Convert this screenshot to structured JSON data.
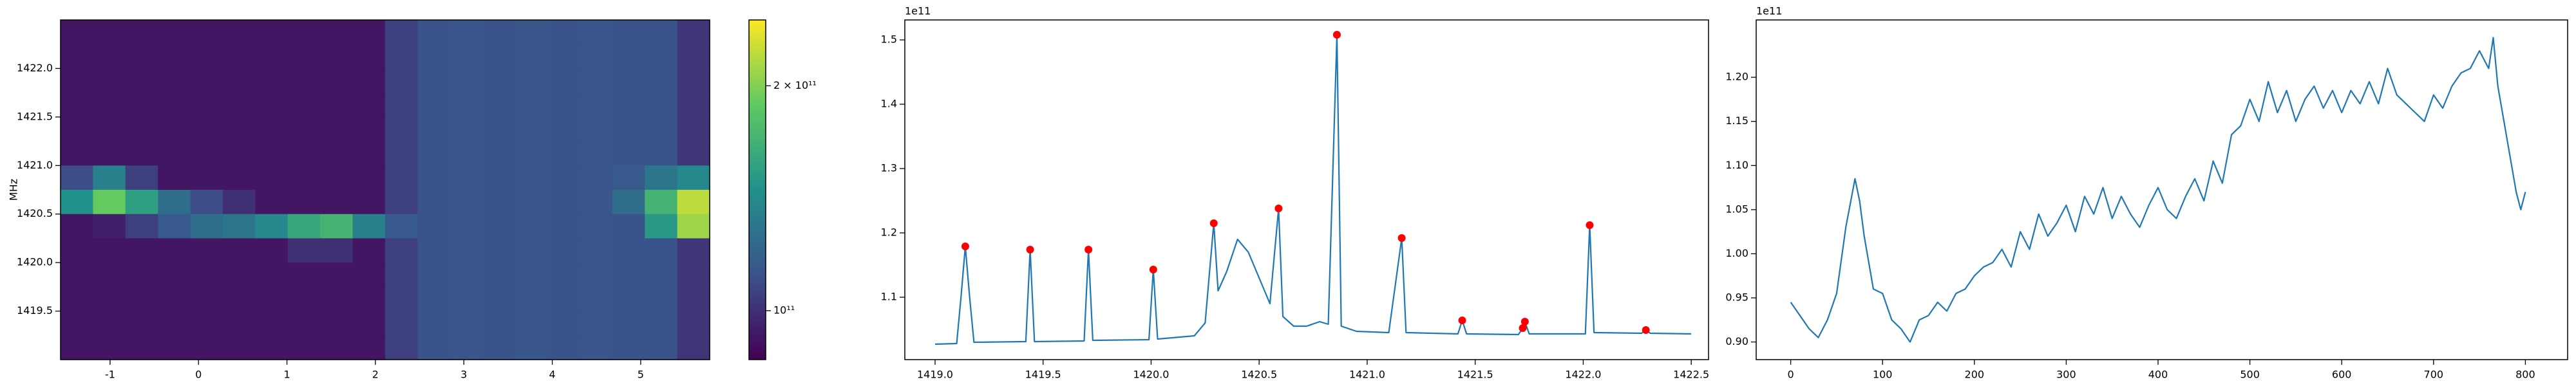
{
  "chart_data": [
    {
      "type": "heatmap",
      "ylabel": "MHz",
      "xlim": [
        -1.56,
        5.78
      ],
      "ylim": [
        1419.0,
        1422.5
      ],
      "xticks": [
        -1,
        0,
        1,
        2,
        3,
        4,
        5
      ],
      "yticks": [
        1419.5,
        {
          "value": 1420,
          "label": "1420.0"
        },
        1420.5,
        {
          "value": 1421,
          "label": "1421.0"
        },
        1421.5,
        {
          "value": 1422,
          "label": "1422.0"
        }
      ],
      "colormap": "viridis",
      "cscale": "log",
      "clim": [
        86000000000.0,
        245000000000.0
      ],
      "cticks": [
        {
          "value": 100000000000.0,
          "label": "10¹¹"
        },
        {
          "value": 200000000000.0,
          "label": "2 × 10¹¹"
        }
      ],
      "z": [
        [
          92000000000.0,
          92000000000.0,
          92000000000.0,
          92000000000.0,
          92000000000.0,
          92000000000.0,
          92000000000.0,
          92000000000.0,
          92000000000.0,
          92000000000.0,
          105000000000.0,
          112000000000.0,
          113000000000.0,
          112000000000.0,
          114000000000.0,
          112000000000.0,
          113000000000.0,
          112000000000.0,
          112000000000.0,
          102000000000.0
        ],
        [
          92000000000.0,
          92000000000.0,
          92000000000.0,
          92000000000.0,
          92000000000.0,
          92000000000.0,
          92000000000.0,
          92000000000.0,
          92000000000.0,
          92000000000.0,
          105000000000.0,
          112000000000.0,
          113000000000.0,
          112000000000.0,
          114000000000.0,
          112000000000.0,
          113000000000.0,
          112000000000.0,
          112000000000.0,
          102000000000.0
        ],
        [
          92000000000.0,
          92000000000.0,
          92000000000.0,
          92000000000.0,
          92000000000.0,
          92000000000.0,
          92000000000.0,
          92000000000.0,
          92000000000.0,
          92000000000.0,
          105000000000.0,
          112000000000.0,
          113000000000.0,
          112000000000.0,
          114000000000.0,
          112000000000.0,
          113000000000.0,
          112000000000.0,
          112000000000.0,
          102000000000.0
        ],
        [
          92000000000.0,
          92000000000.0,
          92000000000.0,
          92000000000.0,
          92000000000.0,
          92000000000.0,
          92000000000.0,
          92000000000.0,
          92000000000.0,
          92000000000.0,
          105000000000.0,
          112000000000.0,
          113000000000.0,
          112000000000.0,
          114000000000.0,
          112000000000.0,
          113000000000.0,
          112000000000.0,
          112000000000.0,
          102000000000.0
        ],
        [
          92000000000.0,
          92000000000.0,
          92000000000.0,
          92000000000.0,
          92000000000.0,
          92000000000.0,
          92000000000.0,
          92000000000.0,
          92000000000.0,
          92000000000.0,
          105000000000.0,
          112000000000.0,
          113000000000.0,
          112000000000.0,
          114000000000.0,
          112000000000.0,
          113000000000.0,
          112000000000.0,
          112000000000.0,
          102000000000.0
        ],
        [
          92000000000.0,
          92000000000.0,
          92000000000.0,
          92000000000.0,
          92000000000.0,
          92000000000.0,
          92000000000.0,
          92000000000.0,
          92000000000.0,
          92000000000.0,
          105000000000.0,
          112000000000.0,
          113000000000.0,
          112000000000.0,
          114000000000.0,
          112000000000.0,
          113000000000.0,
          112000000000.0,
          112000000000.0,
          102000000000.0
        ],
        [
          110000000000.0,
          135000000000.0,
          105000000000.0,
          92000000000.0,
          92000000000.0,
          92000000000.0,
          92000000000.0,
          92000000000.0,
          92000000000.0,
          92000000000.0,
          105000000000.0,
          112000000000.0,
          113000000000.0,
          112000000000.0,
          114000000000.0,
          112000000000.0,
          113000000000.0,
          115000000000.0,
          130000000000.0,
          140000000000.0
        ],
        [
          145000000000.0,
          190000000000.0,
          155000000000.0,
          125000000000.0,
          110000000000.0,
          100000000000.0,
          92000000000.0,
          92000000000.0,
          92000000000.0,
          92000000000.0,
          105000000000.0,
          112000000000.0,
          113000000000.0,
          112000000000.0,
          114000000000.0,
          112000000000.0,
          113000000000.0,
          125000000000.0,
          170000000000.0,
          220000000000.0
        ],
        [
          92000000000.0,
          95000000000.0,
          105000000000.0,
          115000000000.0,
          125000000000.0,
          130000000000.0,
          140000000000.0,
          160000000000.0,
          170000000000.0,
          135000000000.0,
          115000000000.0,
          112000000000.0,
          113000000000.0,
          112000000000.0,
          114000000000.0,
          112000000000.0,
          113000000000.0,
          112000000000.0,
          150000000000.0,
          210000000000.0
        ],
        [
          92000000000.0,
          92000000000.0,
          92000000000.0,
          92000000000.0,
          92000000000.0,
          92000000000.0,
          92000000000.0,
          100000000000.0,
          100000000000.0,
          92000000000.0,
          105000000000.0,
          112000000000.0,
          113000000000.0,
          112000000000.0,
          114000000000.0,
          112000000000.0,
          113000000000.0,
          112000000000.0,
          112000000000.0,
          102000000000.0
        ],
        [
          92000000000.0,
          92000000000.0,
          92000000000.0,
          92000000000.0,
          92000000000.0,
          92000000000.0,
          92000000000.0,
          92000000000.0,
          92000000000.0,
          92000000000.0,
          105000000000.0,
          112000000000.0,
          113000000000.0,
          112000000000.0,
          114000000000.0,
          112000000000.0,
          113000000000.0,
          112000000000.0,
          112000000000.0,
          102000000000.0
        ],
        [
          92000000000.0,
          92000000000.0,
          92000000000.0,
          92000000000.0,
          92000000000.0,
          92000000000.0,
          92000000000.0,
          92000000000.0,
          92000000000.0,
          92000000000.0,
          105000000000.0,
          112000000000.0,
          113000000000.0,
          112000000000.0,
          114000000000.0,
          112000000000.0,
          113000000000.0,
          112000000000.0,
          112000000000.0,
          102000000000.0
        ],
        [
          92000000000.0,
          92000000000.0,
          92000000000.0,
          92000000000.0,
          92000000000.0,
          92000000000.0,
          92000000000.0,
          92000000000.0,
          92000000000.0,
          92000000000.0,
          105000000000.0,
          112000000000.0,
          113000000000.0,
          112000000000.0,
          114000000000.0,
          112000000000.0,
          113000000000.0,
          112000000000.0,
          112000000000.0,
          102000000000.0
        ],
        [
          92000000000.0,
          92000000000.0,
          92000000000.0,
          92000000000.0,
          92000000000.0,
          92000000000.0,
          92000000000.0,
          92000000000.0,
          92000000000.0,
          92000000000.0,
          105000000000.0,
          112000000000.0,
          113000000000.0,
          112000000000.0,
          114000000000.0,
          112000000000.0,
          113000000000.0,
          112000000000.0,
          112000000000.0,
          102000000000.0
        ]
      ]
    },
    {
      "type": "line",
      "offset_text": "1e11",
      "xlim": [
        1418.86,
        1422.58
      ],
      "ylim": [
        1.003,
        1.531
      ],
      "xticks": [
        {
          "value": 1419,
          "label": "1419.0"
        },
        1419.5,
        {
          "value": 1420,
          "label": "1420.0"
        },
        1420.5,
        {
          "value": 1421,
          "label": "1421.0"
        },
        1421.5,
        {
          "value": 1422,
          "label": "1422.0"
        },
        1422.5
      ],
      "yticks": [
        1.1,
        1.2,
        1.3,
        1.4,
        1.5
      ],
      "series": [
        {
          "color": "#1f77b4",
          "x": [
            1419.0,
            1419.1,
            1419.12,
            1419.14,
            1419.16,
            1419.18,
            1419.42,
            1419.44,
            1419.46,
            1419.69,
            1419.71,
            1419.73,
            1419.99,
            1420.01,
            1420.03,
            1420.2,
            1420.25,
            1420.29,
            1420.31,
            1420.35,
            1420.4,
            1420.45,
            1420.5,
            1420.55,
            1420.59,
            1420.61,
            1420.66,
            1420.72,
            1420.78,
            1420.82,
            1420.86,
            1420.88,
            1420.95,
            1421.1,
            1421.16,
            1421.18,
            1421.42,
            1421.44,
            1421.46,
            1421.7,
            1421.72,
            1421.73,
            1421.75,
            1422.01,
            1422.03,
            1422.05,
            1422.27,
            1422.29,
            1422.31,
            1422.5
          ],
          "values": [
            1.027,
            1.028,
            1.1,
            1.179,
            1.1,
            1.03,
            1.031,
            1.174,
            1.031,
            1.032,
            1.174,
            1.033,
            1.034,
            1.143,
            1.035,
            1.04,
            1.06,
            1.215,
            1.11,
            1.14,
            1.19,
            1.17,
            1.13,
            1.09,
            1.238,
            1.07,
            1.055,
            1.055,
            1.062,
            1.058,
            1.508,
            1.055,
            1.047,
            1.045,
            1.192,
            1.045,
            1.043,
            1.064,
            1.043,
            1.042,
            1.052,
            1.062,
            1.043,
            1.043,
            1.212,
            1.045,
            1.044,
            1.049,
            1.044,
            1.043
          ]
        },
        {
          "color": "#ff0000",
          "style": "points",
          "x": [
            1419.14,
            1419.44,
            1419.71,
            1420.01,
            1420.29,
            1420.59,
            1420.86,
            1421.16,
            1421.44,
            1421.72,
            1421.73,
            1422.03,
            1422.29
          ],
          "values": [
            1.179,
            1.174,
            1.174,
            1.143,
            1.215,
            1.238,
            1.508,
            1.192,
            1.064,
            1.052,
            1.062,
            1.212,
            1.049
          ]
        }
      ]
    },
    {
      "type": "line",
      "offset_text": "1e11",
      "xlim": [
        -37.6,
        846
      ],
      "ylim": [
        0.88,
        1.265
      ],
      "xticks": [
        0,
        100,
        200,
        300,
        400,
        500,
        600,
        700,
        800
      ],
      "yticks": [
        {
          "value": 0.9,
          "label": "0.90"
        },
        0.95,
        {
          "value": 1,
          "label": "1.00"
        },
        1.05,
        {
          "value": 1.1,
          "label": "1.10"
        },
        1.15,
        {
          "value": 1.2,
          "label": "1.20"
        }
      ],
      "series": [
        {
          "color": "#1f77b4",
          "x": [
            0,
            10,
            20,
            30,
            40,
            50,
            60,
            70,
            75,
            80,
            90,
            100,
            110,
            120,
            130,
            140,
            150,
            160,
            170,
            180,
            190,
            200,
            210,
            220,
            230,
            240,
            250,
            260,
            270,
            280,
            290,
            300,
            310,
            320,
            330,
            340,
            350,
            360,
            370,
            380,
            390,
            400,
            410,
            420,
            430,
            440,
            450,
            460,
            470,
            480,
            490,
            500,
            510,
            520,
            530,
            540,
            550,
            560,
            570,
            580,
            590,
            600,
            610,
            620,
            630,
            640,
            650,
            660,
            670,
            680,
            690,
            700,
            710,
            720,
            730,
            740,
            750,
            760,
            765,
            770,
            780,
            790,
            795,
            800
          ],
          "values": [
            0.945,
            0.93,
            0.915,
            0.905,
            0.925,
            0.955,
            1.03,
            1.085,
            1.06,
            1.02,
            0.96,
            0.955,
            0.925,
            0.915,
            0.9,
            0.925,
            0.93,
            0.945,
            0.935,
            0.955,
            0.96,
            0.975,
            0.985,
            0.99,
            1.005,
            0.985,
            1.025,
            1.005,
            1.045,
            1.02,
            1.035,
            1.055,
            1.025,
            1.065,
            1.045,
            1.075,
            1.04,
            1.065,
            1.045,
            1.03,
            1.055,
            1.075,
            1.05,
            1.04,
            1.065,
            1.085,
            1.06,
            1.105,
            1.08,
            1.135,
            1.145,
            1.175,
            1.15,
            1.195,
            1.16,
            1.185,
            1.15,
            1.175,
            1.19,
            1.165,
            1.185,
            1.16,
            1.185,
            1.17,
            1.195,
            1.17,
            1.21,
            1.18,
            1.17,
            1.16,
            1.15,
            1.18,
            1.165,
            1.19,
            1.205,
            1.21,
            1.23,
            1.21,
            1.245,
            1.19,
            1.13,
            1.07,
            1.05,
            1.07
          ]
        }
      ]
    }
  ]
}
